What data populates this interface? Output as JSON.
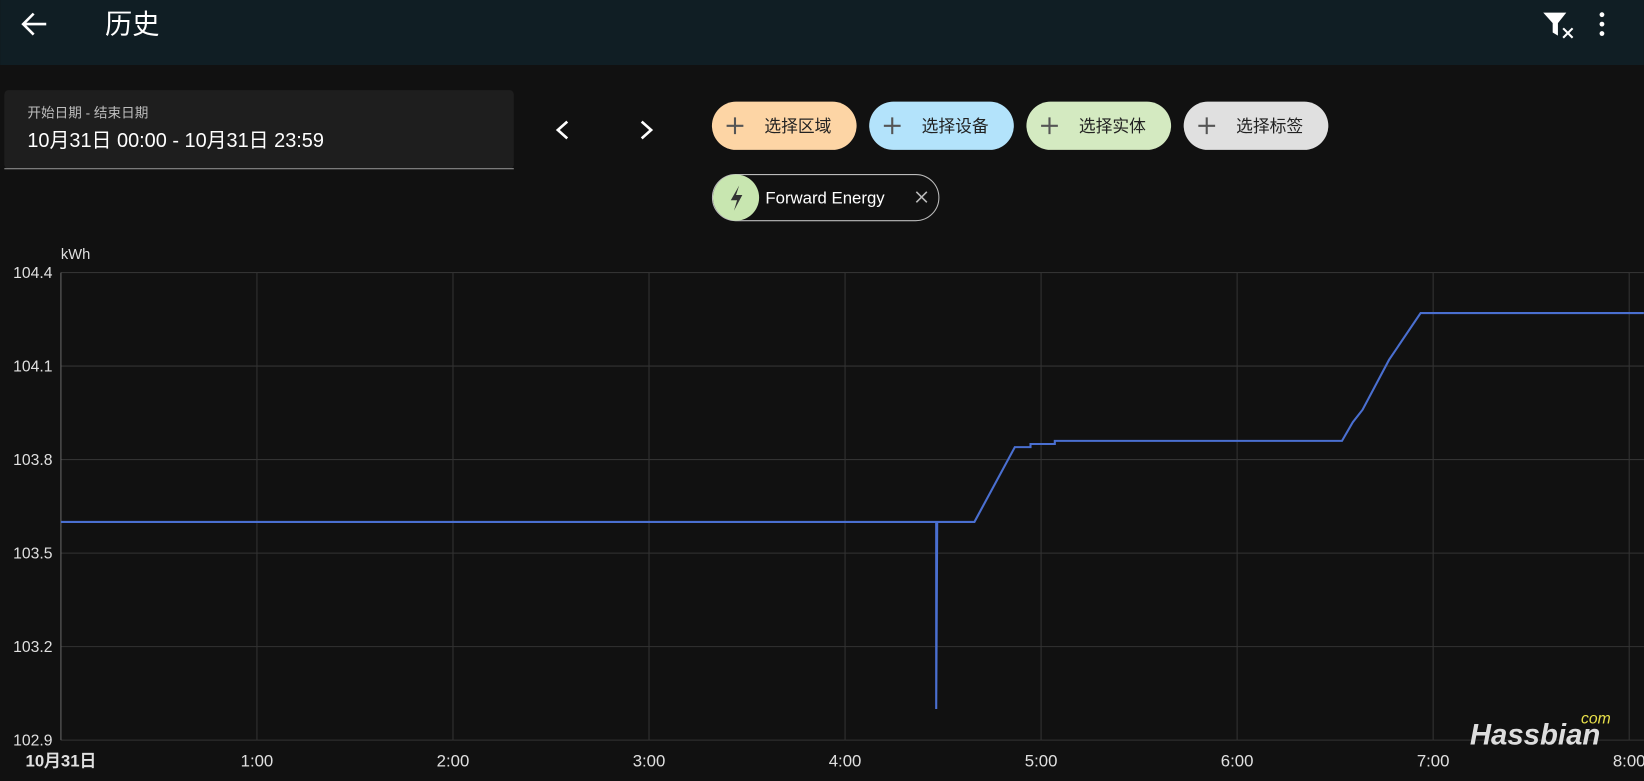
{
  "header": {
    "title": "历史"
  },
  "date_range": {
    "label": "开始日期 - 结束日期",
    "value": "10月31日 00:00 - 10月31日 23:59"
  },
  "filters": [
    "选择区域",
    "选择设备",
    "选择实体",
    "选择标签"
  ],
  "chip": "Forward Energy",
  "watermark": "Hassbian",
  "watermark_suffix": "com",
  "chart_data": {
    "type": "line",
    "y_label": "kWh",
    "x": [
      0,
      4.465,
      4.465,
      4.47,
      4.66,
      4.866,
      4.946,
      4.946,
      5.07,
      5.07,
      6.535,
      6.59,
      6.64,
      6.775,
      6.936,
      8.075
    ],
    "series": [
      {
        "color": "#4a6fd0",
        "values": [
          103.6,
          103.6,
          103.0,
          103.6,
          103.6,
          103.84,
          103.84,
          103.85,
          103.85,
          103.86,
          103.86,
          103.92,
          103.96,
          104.12,
          104.27,
          104.27
        ]
      }
    ],
    "xlim": [
      0,
      8.075
    ],
    "xticks": [
      {
        "value": 0,
        "label": "10月31日"
      },
      {
        "value": 1,
        "label": "1:00"
      },
      {
        "value": 2,
        "label": "2:00"
      },
      {
        "value": 3,
        "label": "3:00"
      },
      {
        "value": 4,
        "label": "4:00"
      },
      {
        "value": 5,
        "label": "5:00"
      },
      {
        "value": 6,
        "label": "6:00"
      },
      {
        "value": 7,
        "label": "7:00"
      },
      {
        "value": 8,
        "label": "8:00"
      }
    ],
    "ylim": [
      102.9,
      104.4
    ],
    "yticks": [
      102.9,
      103.2,
      103.5,
      103.8,
      104.1,
      104.4
    ],
    "grid": true
  }
}
